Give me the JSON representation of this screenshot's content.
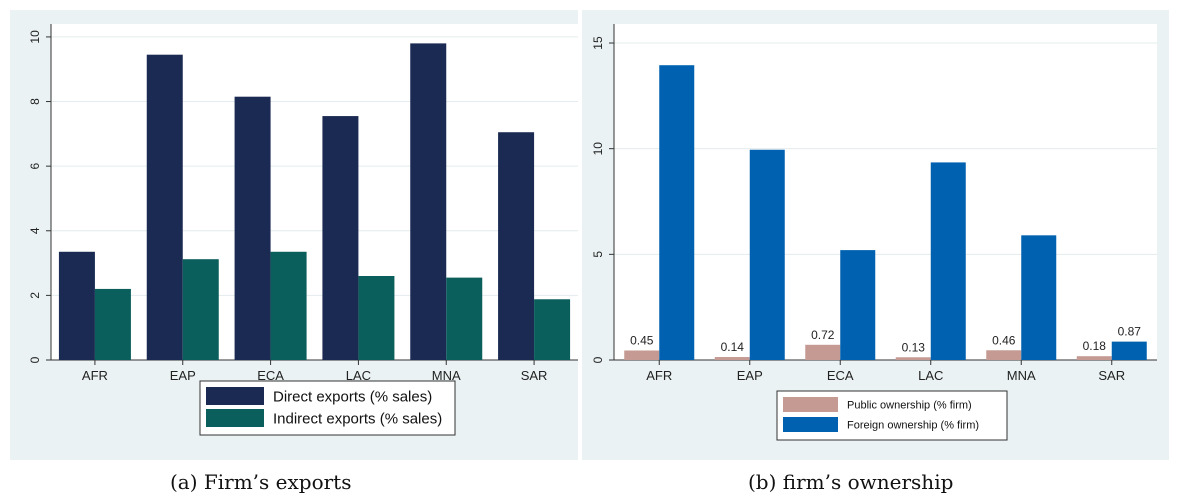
{
  "captions": {
    "a": "(a) Firm’s exports",
    "b": "(b) firm’s ownership"
  },
  "chart_data": [
    {
      "type": "bar",
      "title": "",
      "xlabel": "",
      "ylabel": "",
      "categories": [
        "AFR",
        "EAP",
        "ECA",
        "LAC",
        "MNA",
        "SAR"
      ],
      "ylim": [
        0,
        10.4
      ],
      "yticks": [
        0,
        2,
        4,
        6,
        8,
        10
      ],
      "ytick_labels": [
        "0",
        "2",
        "4",
        "6",
        "8",
        "10"
      ],
      "grid": true,
      "legend_position": "bottom",
      "series": [
        {
          "name": "Direct exports (% sales)",
          "color": "#1a2a52",
          "values": [
            3.35,
            9.45,
            8.15,
            7.55,
            9.8,
            7.05
          ]
        },
        {
          "name": "Indirect exports (% sales)",
          "color": "#0a5e5c",
          "values": [
            2.2,
            3.12,
            3.35,
            2.6,
            2.55,
            1.88
          ]
        }
      ]
    },
    {
      "type": "bar",
      "title": "",
      "xlabel": "",
      "ylabel": "",
      "categories": [
        "AFR",
        "EAP",
        "ECA",
        "LAC",
        "MNA",
        "SAR"
      ],
      "ylim": [
        0,
        15.9
      ],
      "yticks": [
        0,
        5,
        10,
        15
      ],
      "ytick_labels": [
        "0",
        "5",
        "10",
        "15"
      ],
      "grid": true,
      "legend_position": "bottom",
      "series": [
        {
          "name": "Public ownership (% firm)",
          "color": "#c49a93",
          "values": [
            0.45,
            0.14,
            0.72,
            0.13,
            0.46,
            0.18
          ],
          "labels": [
            "0.45",
            "0.14",
            "0.72",
            "0.13",
            "0.46",
            "0.18"
          ]
        },
        {
          "name": "Foreign ownership (% firm)",
          "color": "#0061b0",
          "values": [
            13.95,
            9.95,
            5.2,
            9.35,
            5.9,
            0.87
          ],
          "labels": [
            "",
            "",
            "",
            "",
            "",
            "0.87"
          ]
        }
      ]
    }
  ]
}
